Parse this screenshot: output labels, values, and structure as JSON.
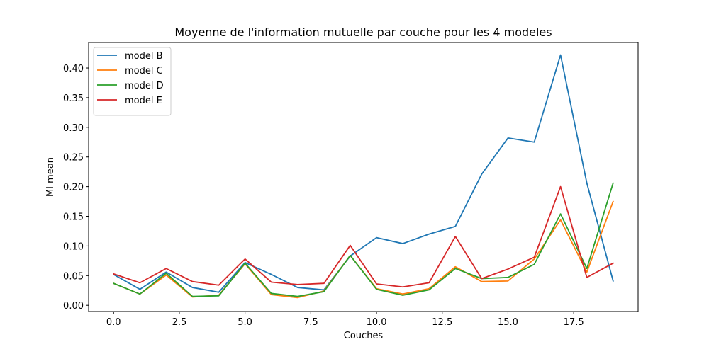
{
  "chart_data": {
    "type": "line",
    "title": "Moyenne de l'information mutuelle par couche pour les 4 modeles",
    "xlabel": "Couches",
    "ylabel": "MI mean",
    "xlim": [
      -0.95,
      19.95
    ],
    "ylim": [
      -0.0105,
      0.443
    ],
    "xticks": [
      0.0,
      2.5,
      5.0,
      7.5,
      10.0,
      12.5,
      15.0,
      17.5
    ],
    "xtick_labels": [
      "0.0",
      "2.5",
      "5.0",
      "7.5",
      "10.0",
      "12.5",
      "15.0",
      "17.5"
    ],
    "yticks": [
      0.0,
      0.05,
      0.1,
      0.15,
      0.2,
      0.25,
      0.3,
      0.35,
      0.4
    ],
    "ytick_labels": [
      "0.00",
      "0.05",
      "0.10",
      "0.15",
      "0.20",
      "0.25",
      "0.30",
      "0.35",
      "0.40"
    ],
    "grid": false,
    "legend_position": "top-left",
    "x": [
      0,
      1,
      2,
      3,
      4,
      5,
      6,
      7,
      8,
      9,
      10,
      11,
      12,
      13,
      14,
      15,
      16,
      17,
      18,
      19
    ],
    "series": [
      {
        "name": "model B",
        "color": "#1f77b4",
        "values": [
          0.052,
          0.027,
          0.056,
          0.03,
          0.022,
          0.072,
          0.052,
          0.03,
          0.026,
          0.083,
          0.114,
          0.104,
          0.12,
          0.133,
          0.221,
          0.282,
          0.275,
          0.422,
          0.206,
          0.041
        ]
      },
      {
        "name": "model C",
        "color": "#ff7f0e",
        "values": [
          0.037,
          0.019,
          0.051,
          0.014,
          0.017,
          0.07,
          0.018,
          0.013,
          0.024,
          0.084,
          0.028,
          0.019,
          0.028,
          0.065,
          0.04,
          0.041,
          0.078,
          0.144,
          0.056,
          0.175
        ]
      },
      {
        "name": "model D",
        "color": "#2ca02c",
        "values": [
          0.037,
          0.019,
          0.054,
          0.015,
          0.016,
          0.071,
          0.02,
          0.015,
          0.023,
          0.084,
          0.027,
          0.017,
          0.026,
          0.062,
          0.045,
          0.047,
          0.069,
          0.154,
          0.062,
          0.206
        ]
      },
      {
        "name": "model E",
        "color": "#d62728",
        "values": [
          0.053,
          0.038,
          0.062,
          0.04,
          0.034,
          0.078,
          0.039,
          0.035,
          0.037,
          0.101,
          0.036,
          0.031,
          0.038,
          0.116,
          0.045,
          0.061,
          0.081,
          0.2,
          0.047,
          0.071
        ]
      }
    ]
  }
}
